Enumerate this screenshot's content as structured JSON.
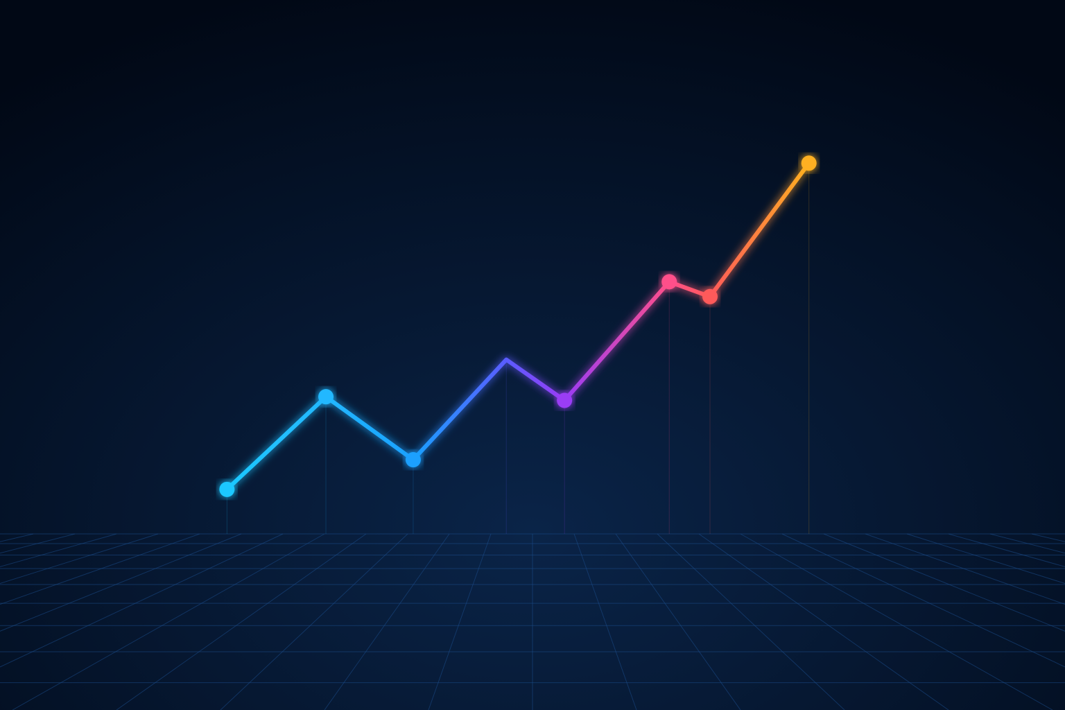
{
  "chart_data": {
    "type": "line",
    "x": [
      0,
      1.7,
      3.2,
      4.8,
      5.8,
      7.6,
      8.3,
      10
    ],
    "series": [
      {
        "values": [
          1.2,
          3.7,
          2.0,
          4.7,
          3.6,
          6.8,
          6.4,
          10
        ],
        "colors": [
          "#1ec8ff",
          "#22b8ff",
          "#1aa0ff",
          "#5a5cff",
          "#9a3cf5",
          "#ff4f8a",
          "#ff5a5a",
          "#ffb020"
        ],
        "markers": [
          true,
          true,
          true,
          false,
          true,
          true,
          true,
          true
        ]
      }
    ],
    "xlim": [
      -3.9,
      14.4
    ],
    "ylim": [
      0,
      14.4
    ],
    "grid": true
  }
}
